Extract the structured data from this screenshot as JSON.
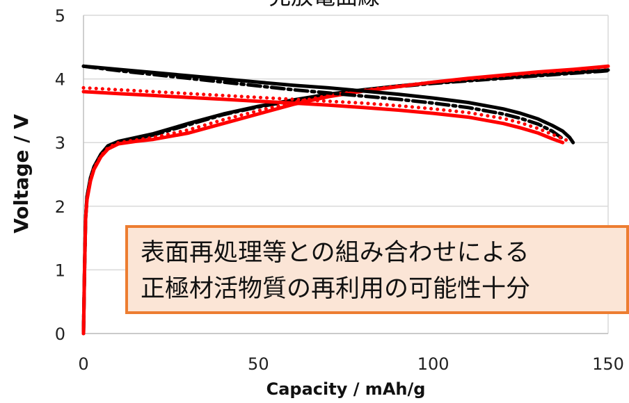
{
  "annotation": {
    "line1": "表面再処理等との組み合わせによる",
    "line2": "正極材活物質の再利用の可能性十分"
  },
  "chart_data": {
    "type": "line",
    "title": "充放電曲線",
    "xlabel": "Capacity / mAh/g",
    "ylabel": "Voltage / V",
    "xlim": [
      0,
      150
    ],
    "ylim": [
      0,
      5
    ],
    "xticks": [
      "0",
      "50",
      "100",
      "150"
    ],
    "yticks": [
      "0",
      "1",
      "2",
      "3",
      "4",
      "5"
    ],
    "grid": "horizontal",
    "legend": "none",
    "series": [
      {
        "color": "#000000",
        "style": "solid",
        "x": [
          0,
          0.3,
          0.6,
          1,
          2,
          3,
          5,
          7,
          10,
          15,
          20,
          30,
          40,
          50,
          60,
          70,
          80,
          90,
          100,
          110,
          120,
          130,
          140,
          148,
          150
        ],
        "y": [
          0.0,
          1.0,
          1.8,
          2.15,
          2.45,
          2.62,
          2.82,
          2.95,
          3.02,
          3.08,
          3.14,
          3.3,
          3.45,
          3.57,
          3.67,
          3.76,
          3.83,
          3.89,
          3.94,
          3.98,
          4.02,
          4.06,
          4.1,
          4.13,
          4.14
        ]
      },
      {
        "color": "#000000",
        "style": "dashdot",
        "x": [
          0,
          0.3,
          0.6,
          1,
          2,
          3,
          5,
          7,
          10,
          15,
          20,
          30,
          40,
          50,
          60,
          70,
          80,
          90,
          100,
          110,
          120,
          130,
          140,
          148,
          150
        ],
        "y": [
          0.0,
          1.0,
          1.8,
          2.13,
          2.43,
          2.6,
          2.8,
          2.93,
          3.0,
          3.06,
          3.12,
          3.28,
          3.44,
          3.56,
          3.66,
          3.75,
          3.82,
          3.88,
          3.93,
          3.97,
          4.01,
          4.05,
          4.09,
          4.12,
          4.13
        ]
      },
      {
        "color": "#ff0000",
        "style": "solid",
        "x": [
          0,
          0.3,
          0.6,
          1,
          2,
          3,
          5,
          7,
          10,
          15,
          20,
          30,
          40,
          50,
          60,
          70,
          80,
          90,
          100,
          110,
          120,
          130,
          140,
          148,
          150
        ],
        "y": [
          0.0,
          1.0,
          1.8,
          2.1,
          2.4,
          2.58,
          2.78,
          2.9,
          2.98,
          3.02,
          3.05,
          3.15,
          3.3,
          3.45,
          3.6,
          3.72,
          3.81,
          3.88,
          3.95,
          4.01,
          4.06,
          4.11,
          4.15,
          4.19,
          4.2
        ]
      },
      {
        "color": "#ff0000",
        "style": "dotted",
        "x": [
          0,
          0.3,
          0.6,
          1,
          2,
          3,
          5,
          7,
          10,
          15,
          20,
          30,
          40,
          50,
          60,
          70,
          80,
          90,
          100,
          110,
          120,
          130,
          140,
          148,
          150
        ],
        "y": [
          0.0,
          1.0,
          1.8,
          2.12,
          2.42,
          2.6,
          2.79,
          2.92,
          3.0,
          3.04,
          3.08,
          3.2,
          3.36,
          3.5,
          3.63,
          3.74,
          3.82,
          3.89,
          3.95,
          4.0,
          4.05,
          4.1,
          4.14,
          4.18,
          4.19
        ]
      },
      {
        "color": "#000000",
        "style": "solid",
        "x": [
          0,
          10,
          20,
          30,
          40,
          50,
          60,
          70,
          80,
          90,
          100,
          110,
          120,
          125,
          130,
          134,
          137,
          139,
          140
        ],
        "y": [
          4.2,
          4.15,
          4.1,
          4.05,
          4.0,
          3.95,
          3.9,
          3.86,
          3.81,
          3.76,
          3.7,
          3.63,
          3.53,
          3.46,
          3.37,
          3.27,
          3.18,
          3.08,
          3.0
        ]
      },
      {
        "color": "#000000",
        "style": "dashdot",
        "x": [
          0,
          10,
          20,
          30,
          40,
          50,
          60,
          70,
          80,
          90,
          100,
          110,
          120,
          125,
          130,
          134,
          137
        ],
        "y": [
          4.2,
          4.13,
          4.07,
          4.01,
          3.95,
          3.89,
          3.83,
          3.78,
          3.73,
          3.68,
          3.62,
          3.55,
          3.45,
          3.38,
          3.29,
          3.18,
          3.06
        ]
      },
      {
        "color": "#ff0000",
        "style": "solid",
        "x": [
          0,
          10,
          20,
          30,
          40,
          50,
          60,
          70,
          80,
          90,
          100,
          110,
          120,
          125,
          130,
          134,
          137
        ],
        "y": [
          3.8,
          3.77,
          3.74,
          3.71,
          3.68,
          3.65,
          3.62,
          3.59,
          3.55,
          3.51,
          3.46,
          3.4,
          3.3,
          3.23,
          3.15,
          3.06,
          3.0
        ]
      },
      {
        "color": "#ff0000",
        "style": "dotted",
        "x": [
          0,
          10,
          20,
          30,
          40,
          50,
          60,
          70,
          80,
          90,
          100,
          110,
          120,
          125,
          130,
          134,
          138
        ],
        "y": [
          3.86,
          3.83,
          3.8,
          3.77,
          3.74,
          3.71,
          3.68,
          3.65,
          3.62,
          3.58,
          3.53,
          3.47,
          3.38,
          3.31,
          3.22,
          3.13,
          3.04
        ]
      }
    ]
  }
}
